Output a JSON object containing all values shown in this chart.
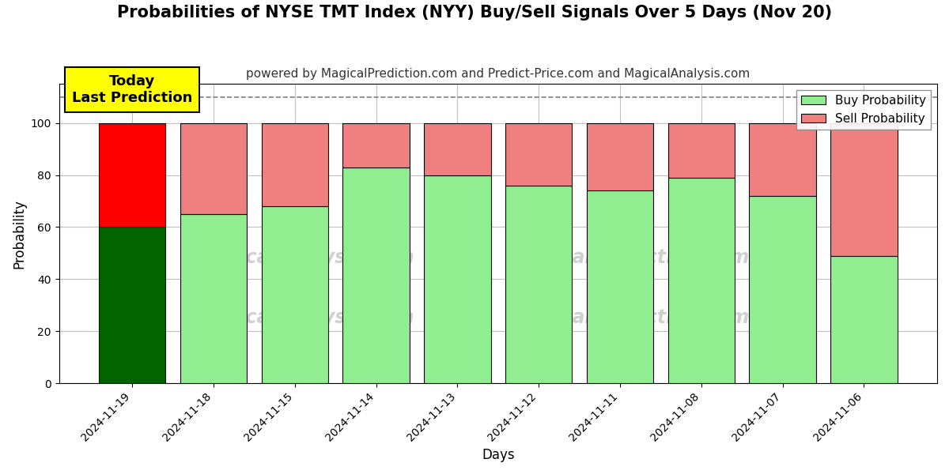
{
  "title": "Probabilities of NYSE TMT Index (NYY) Buy/Sell Signals Over 5 Days (Nov 20)",
  "subtitle": "powered by MagicalPrediction.com and Predict-Price.com and MagicalAnalysis.com",
  "xlabel": "Days",
  "ylabel": "Probability",
  "categories": [
    "2024-11-19",
    "2024-11-18",
    "2024-11-15",
    "2024-11-14",
    "2024-11-13",
    "2024-11-12",
    "2024-11-11",
    "2024-11-08",
    "2024-11-07",
    "2024-11-06"
  ],
  "buy_values": [
    60,
    65,
    68,
    83,
    80,
    76,
    74,
    79,
    72,
    49
  ],
  "sell_values": [
    40,
    35,
    32,
    17,
    20,
    24,
    26,
    21,
    28,
    51
  ],
  "buy_colors": [
    "#006400",
    "#90EE90",
    "#90EE90",
    "#90EE90",
    "#90EE90",
    "#90EE90",
    "#90EE90",
    "#90EE90",
    "#90EE90",
    "#90EE90"
  ],
  "sell_colors": [
    "#FF0000",
    "#F08080",
    "#F08080",
    "#F08080",
    "#F08080",
    "#F08080",
    "#F08080",
    "#F08080",
    "#F08080",
    "#F08080"
  ],
  "legend_buy_color": "#90EE90",
  "legend_sell_color": "#F08080",
  "today_box_color": "#FFFF00",
  "today_text": "Today\nLast Prediction",
  "dashed_line_y": 110,
  "ylim": [
    0,
    115
  ],
  "yticks": [
    0,
    20,
    40,
    60,
    80,
    100
  ],
  "bar_edge_color": "#000000",
  "watermark_color": "#d0d0d0",
  "background_color": "#ffffff",
  "grid_color": "#c0c0c0",
  "title_fontsize": 15,
  "subtitle_fontsize": 11,
  "axis_label_fontsize": 12,
  "tick_fontsize": 10
}
